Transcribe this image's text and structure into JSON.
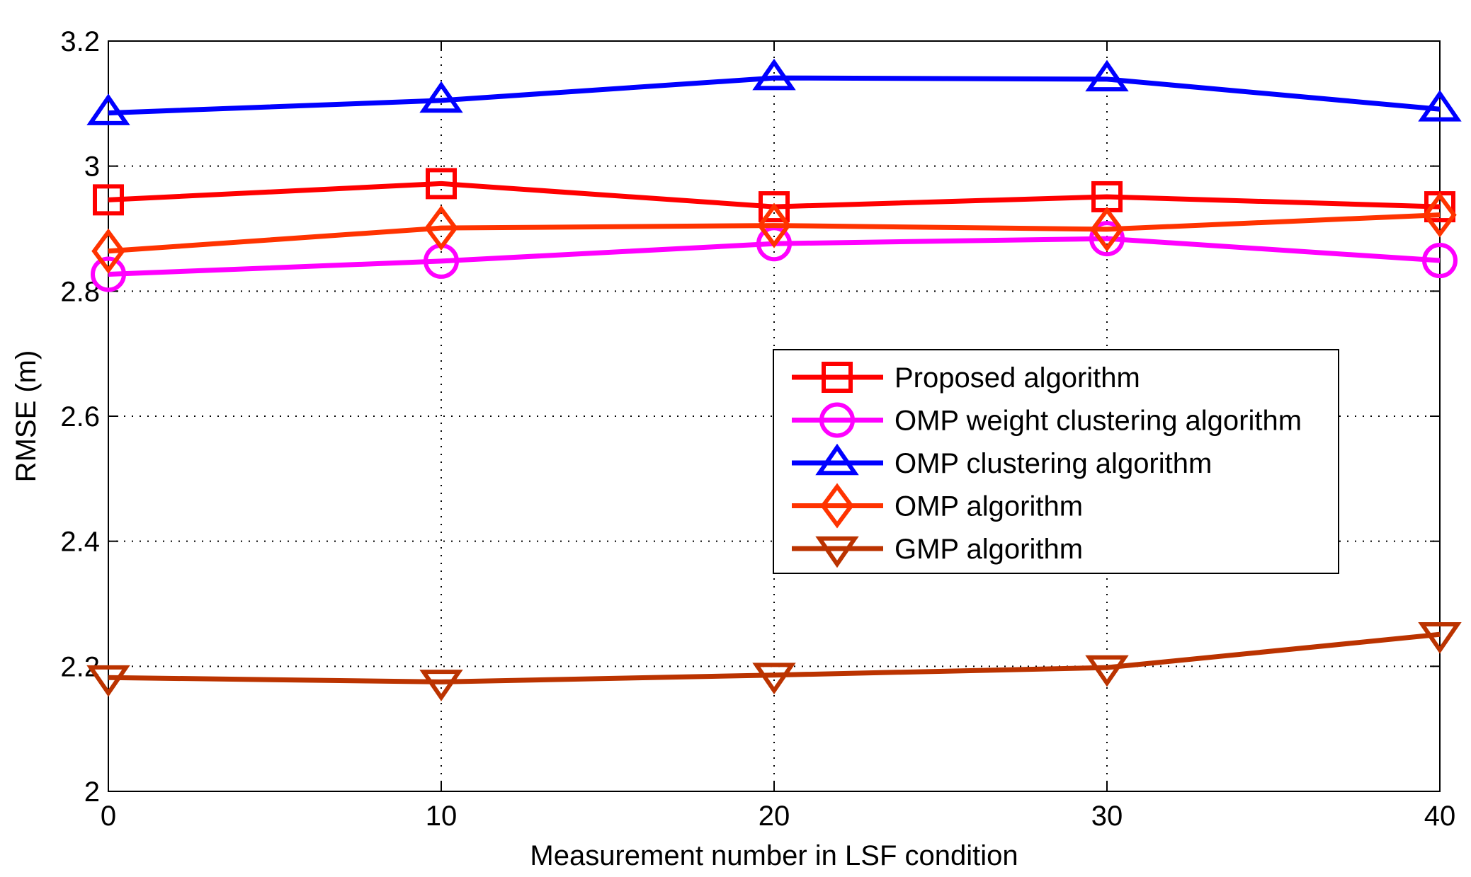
{
  "chart_data": {
    "type": "line",
    "title": "",
    "xlabel": "Measurement number in LSF condition",
    "ylabel": "RMSE (m)",
    "xlim": [
      0,
      40
    ],
    "ylim": [
      2,
      3.2
    ],
    "x_ticks": [
      0,
      10,
      20,
      30,
      40
    ],
    "y_ticks": [
      2,
      2.2,
      2.4,
      2.6,
      2.8,
      3,
      3.2
    ],
    "x_tick_labels": [
      "0",
      "10",
      "20",
      "30",
      "40"
    ],
    "y_tick_labels": [
      "2",
      "2.2",
      "2.4",
      "2.6",
      "2.8",
      "3",
      "3.2"
    ],
    "grid": true,
    "legend_position": "center-right",
    "x": [
      0,
      10,
      20,
      30,
      40
    ],
    "series": [
      {
        "name": "Proposed algorithm",
        "color": "#ff0000",
        "marker": "square",
        "values": [
          2.946,
          2.972,
          2.935,
          2.951,
          2.935
        ]
      },
      {
        "name": "OMP weight clustering algorithm",
        "color": "#ff00ff",
        "marker": "circle",
        "values": [
          2.827,
          2.848,
          2.876,
          2.884,
          2.849
        ]
      },
      {
        "name": "OMP clustering algorithm",
        "color": "#0000ff",
        "marker": "triangle-up",
        "values": [
          3.085,
          3.105,
          3.141,
          3.139,
          3.091
        ]
      },
      {
        "name": "OMP algorithm",
        "color": "#ff3300",
        "marker": "diamond",
        "values": [
          2.864,
          2.901,
          2.905,
          2.899,
          2.922
        ]
      },
      {
        "name": "GMP algorithm",
        "color": "#bb3300",
        "marker": "triangle-down",
        "values": [
          2.182,
          2.175,
          2.186,
          2.198,
          2.251
        ]
      }
    ]
  }
}
